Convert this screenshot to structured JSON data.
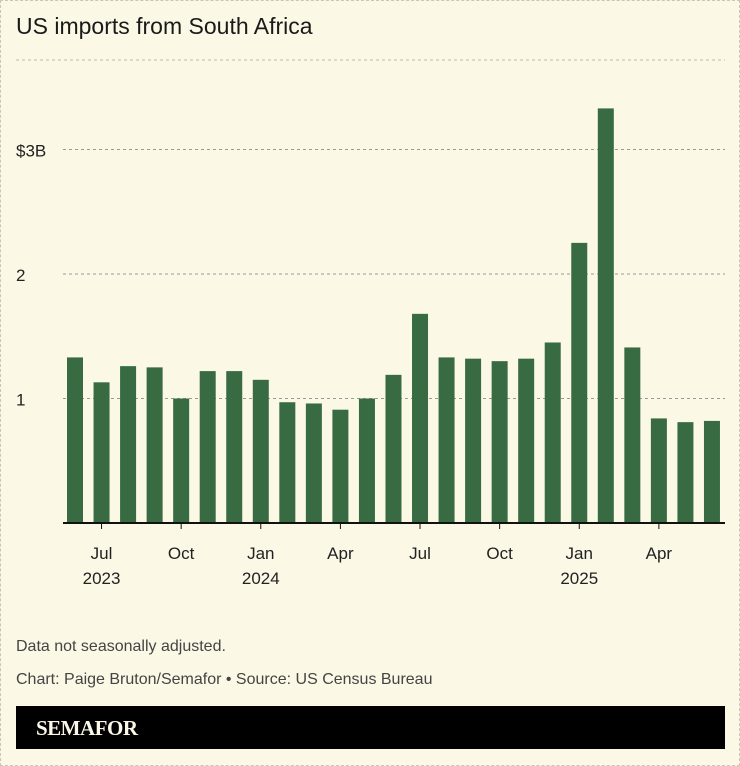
{
  "title": "US imports from South Africa",
  "note": "Data not seasonally adjusted.",
  "credit": "Chart: Paige Bruton/Semafor • Source: US Census Bureau",
  "logo": "SEMAFOR",
  "colors": {
    "bar": "#386b42",
    "background": "#fbf8e6"
  },
  "chart_data": {
    "type": "bar",
    "title": "US imports from South Africa",
    "categories": [
      "2023-06",
      "2023-07",
      "2023-08",
      "2023-09",
      "2023-10",
      "2023-11",
      "2023-12",
      "2024-01",
      "2024-02",
      "2024-03",
      "2024-04",
      "2024-05",
      "2024-06",
      "2024-07",
      "2024-08",
      "2024-09",
      "2024-10",
      "2024-11",
      "2024-12",
      "2025-01",
      "2025-02",
      "2025-03",
      "2025-04",
      "2025-05",
      "2025-06"
    ],
    "values": [
      1.33,
      1.13,
      1.26,
      1.25,
      1.0,
      1.22,
      1.22,
      1.15,
      0.97,
      0.96,
      0.91,
      1.0,
      1.19,
      1.68,
      1.33,
      1.32,
      1.3,
      1.32,
      1.45,
      2.25,
      3.33,
      1.41,
      0.84,
      0.81,
      0.82
    ],
    "unit": "billion USD",
    "ylim": [
      0,
      3.5
    ],
    "yticks": [
      {
        "v": 1,
        "label": "1"
      },
      {
        "v": 2,
        "label": "2"
      },
      {
        "v": 3,
        "label": "$3B"
      }
    ],
    "xticks": [
      {
        "i": 1,
        "label": "Jul",
        "year": "2023"
      },
      {
        "i": 4,
        "label": "Oct",
        "year": ""
      },
      {
        "i": 7,
        "label": "Jan",
        "year": "2024"
      },
      {
        "i": 10,
        "label": "Apr",
        "year": ""
      },
      {
        "i": 13,
        "label": "Jul",
        "year": ""
      },
      {
        "i": 16,
        "label": "Oct",
        "year": ""
      },
      {
        "i": 19,
        "label": "Jan",
        "year": "2025"
      },
      {
        "i": 22,
        "label": "Apr",
        "year": ""
      }
    ],
    "grid": true,
    "xlabel": "",
    "ylabel": ""
  }
}
